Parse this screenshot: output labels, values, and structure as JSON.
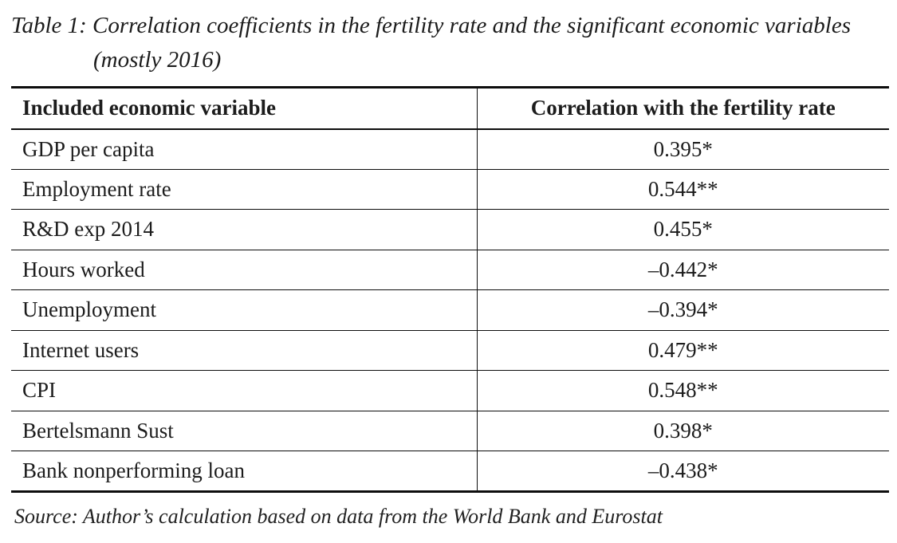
{
  "caption": {
    "line1": "Table 1: Correlation coefficients in the fertility rate and the significant economic variables",
    "line2": "(mostly 2016)"
  },
  "table": {
    "headers": {
      "variable": "Included economic variable",
      "value": "Correlation with the fertility rate"
    },
    "rows": [
      {
        "variable": "GDP per capita",
        "value": "0.395*"
      },
      {
        "variable": "Employment rate",
        "value": "0.544**"
      },
      {
        "variable": "R&D exp 2014",
        "value": "0.455*"
      },
      {
        "variable": "Hours worked",
        "value": "–0.442*"
      },
      {
        "variable": "Unemployment",
        "value": "–0.394*"
      },
      {
        "variable": "Internet users",
        "value": "0.479**"
      },
      {
        "variable": "CPI",
        "value": "0.548**"
      },
      {
        "variable": "Bertelsmann Sust",
        "value": "0.398*"
      },
      {
        "variable": "Bank nonperforming loan",
        "value": "–0.438*"
      }
    ]
  },
  "source": "Source: Author’s calculation based on data from the World Bank and Eurostat",
  "colors": {
    "background": "#ffffff",
    "text": "#1c1c1c",
    "border": "#0d0d0d"
  }
}
